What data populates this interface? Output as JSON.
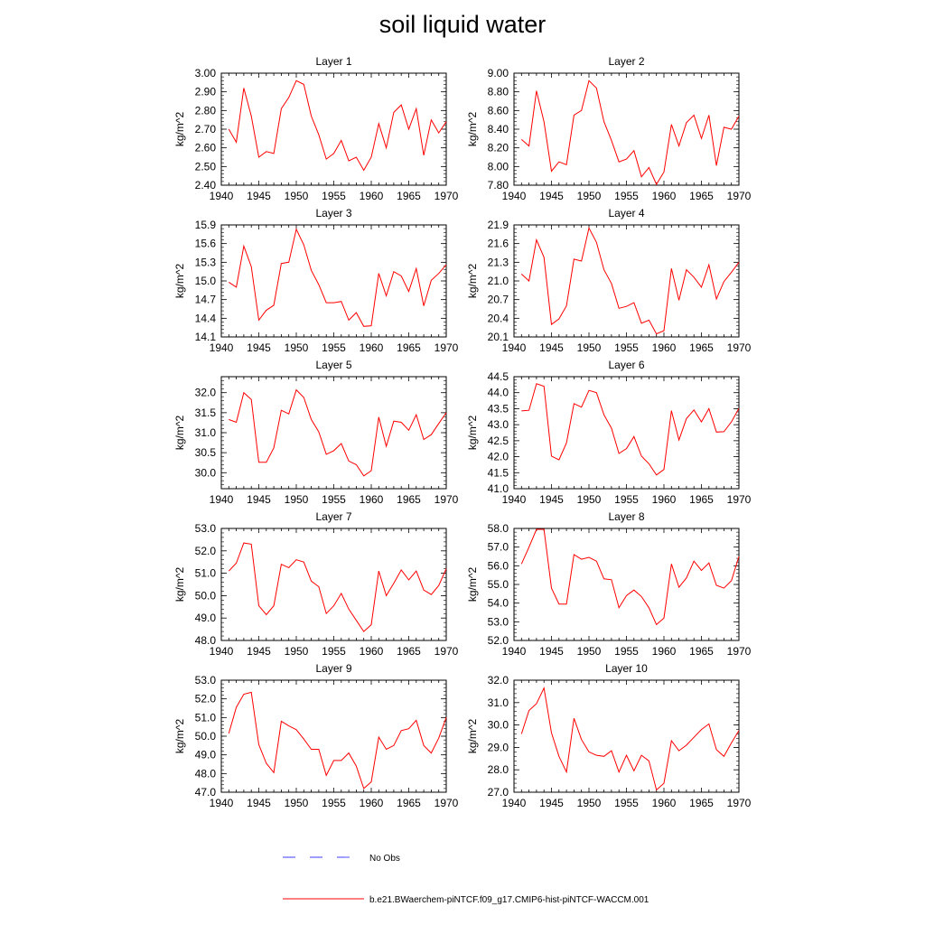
{
  "title": "soil liquid water",
  "colors": {
    "model_line": "#ff0000",
    "obs_line": "#3b3bff",
    "axis": "#000000"
  },
  "legend": {
    "obs_label": "No Obs",
    "model_label": "b.e21.BWaerchem-piNTCF.f09_g17.CMIP6-hist-piNTCF-WACCM.001"
  },
  "chart_data": [
    {
      "type": "line",
      "title": "Layer 1",
      "ylabel": "kg/m^2",
      "xlim": [
        1940,
        1970
      ],
      "ylim": [
        2.4,
        3.0
      ],
      "xticks": [
        1940,
        1945,
        1950,
        1955,
        1960,
        1965,
        1970
      ],
      "yticks": [
        "2.40",
        "2.50",
        "2.60",
        "2.70",
        "2.80",
        "2.90",
        "3.00"
      ],
      "x": [
        1941,
        1942,
        1943,
        1944,
        1945,
        1946,
        1947,
        1948,
        1949,
        1950,
        1951,
        1952,
        1953,
        1954,
        1955,
        1956,
        1957,
        1958,
        1959,
        1960,
        1961,
        1962,
        1963,
        1964,
        1965,
        1966,
        1967,
        1968,
        1969,
        1970
      ],
      "series": [
        {
          "values": [
            2.7,
            2.63,
            2.92,
            2.77,
            2.55,
            2.58,
            2.57,
            2.81,
            2.87,
            2.96,
            2.94,
            2.77,
            2.67,
            2.54,
            2.57,
            2.64,
            2.53,
            2.55,
            2.48,
            2.55,
            2.73,
            2.6,
            2.79,
            2.83,
            2.7,
            2.81,
            2.56,
            2.75,
            2.68,
            2.74
          ]
        }
      ]
    },
    {
      "type": "line",
      "title": "Layer 2",
      "ylabel": "kg/m^2",
      "xlim": [
        1940,
        1970
      ],
      "ylim": [
        7.8,
        9.0
      ],
      "xticks": [
        1940,
        1945,
        1950,
        1955,
        1960,
        1965,
        1970
      ],
      "yticks": [
        "7.80",
        "8.00",
        "8.20",
        "8.40",
        "8.60",
        "8.80",
        "9.00"
      ],
      "x": [
        1941,
        1942,
        1943,
        1944,
        1945,
        1946,
        1947,
        1948,
        1949,
        1950,
        1951,
        1952,
        1953,
        1954,
        1955,
        1956,
        1957,
        1958,
        1959,
        1960,
        1961,
        1962,
        1963,
        1964,
        1965,
        1966,
        1967,
        1968,
        1969,
        1970
      ],
      "series": [
        {
          "values": [
            8.29,
            8.22,
            8.81,
            8.48,
            7.95,
            8.05,
            8.02,
            8.55,
            8.6,
            8.92,
            8.84,
            8.48,
            8.28,
            8.05,
            8.08,
            8.17,
            7.89,
            7.99,
            7.81,
            7.94,
            8.45,
            8.22,
            8.47,
            8.55,
            8.3,
            8.55,
            8.01,
            8.42,
            8.4,
            8.54
          ]
        }
      ]
    },
    {
      "type": "line",
      "title": "Layer 3",
      "ylabel": "kg/m^2",
      "xlim": [
        1940,
        1970
      ],
      "ylim": [
        14.1,
        15.9
      ],
      "xticks": [
        1940,
        1945,
        1950,
        1955,
        1960,
        1965,
        1970
      ],
      "yticks": [
        "14.1",
        "14.4",
        "14.7",
        "15.0",
        "15.3",
        "15.6",
        "15.9"
      ],
      "x": [
        1941,
        1942,
        1943,
        1944,
        1945,
        1946,
        1947,
        1948,
        1949,
        1950,
        1951,
        1952,
        1953,
        1954,
        1955,
        1956,
        1957,
        1958,
        1959,
        1960,
        1961,
        1962,
        1963,
        1964,
        1965,
        1966,
        1967,
        1968,
        1969,
        1970
      ],
      "series": [
        {
          "values": [
            14.98,
            14.9,
            15.56,
            15.23,
            14.37,
            14.53,
            14.61,
            15.28,
            15.3,
            15.83,
            15.58,
            15.17,
            14.94,
            14.65,
            14.65,
            14.67,
            14.37,
            14.49,
            14.27,
            14.28,
            15.12,
            14.76,
            15.15,
            15.08,
            14.83,
            15.2,
            14.6,
            15.01,
            15.12,
            15.26
          ]
        }
      ]
    },
    {
      "type": "line",
      "title": "Layer 4",
      "ylabel": "kg/m^2",
      "xlim": [
        1940,
        1970
      ],
      "ylim": [
        20.1,
        21.9
      ],
      "xticks": [
        1940,
        1945,
        1950,
        1955,
        1960,
        1965,
        1970
      ],
      "yticks": [
        "20.1",
        "20.4",
        "20.7",
        "21.0",
        "21.3",
        "21.6",
        "21.9"
      ],
      "x": [
        1941,
        1942,
        1943,
        1944,
        1945,
        1946,
        1947,
        1948,
        1949,
        1950,
        1951,
        1952,
        1953,
        1954,
        1955,
        1956,
        1957,
        1958,
        1959,
        1960,
        1961,
        1962,
        1963,
        1964,
        1965,
        1966,
        1967,
        1968,
        1969,
        1970
      ],
      "series": [
        {
          "values": [
            21.11,
            21.0,
            21.66,
            21.38,
            20.3,
            20.39,
            20.6,
            21.35,
            21.32,
            21.85,
            21.62,
            21.18,
            20.96,
            20.56,
            20.59,
            20.65,
            20.32,
            20.37,
            20.15,
            20.2,
            21.2,
            20.69,
            21.18,
            21.06,
            20.9,
            21.26,
            20.71,
            20.99,
            21.14,
            21.3
          ]
        }
      ]
    },
    {
      "type": "line",
      "title": "Layer 5",
      "ylabel": "kg/m^2",
      "xlim": [
        1940,
        1970
      ],
      "ylim": [
        29.6,
        32.4
      ],
      "xticks": [
        1940,
        1945,
        1950,
        1955,
        1960,
        1965,
        1970
      ],
      "yticks": [
        "30.0",
        "30.5",
        "31.0",
        "31.5",
        "32.0"
      ],
      "x": [
        1941,
        1942,
        1943,
        1944,
        1945,
        1946,
        1947,
        1948,
        1949,
        1950,
        1951,
        1952,
        1953,
        1954,
        1955,
        1956,
        1957,
        1958,
        1959,
        1960,
        1961,
        1962,
        1963,
        1964,
        1965,
        1966,
        1967,
        1968,
        1969,
        1970
      ],
      "series": [
        {
          "values": [
            31.33,
            31.26,
            32.0,
            31.83,
            30.26,
            30.26,
            30.62,
            31.56,
            31.47,
            32.07,
            31.88,
            31.33,
            31.02,
            30.46,
            30.55,
            30.73,
            30.29,
            30.2,
            29.92,
            30.05,
            31.39,
            30.66,
            31.29,
            31.26,
            31.06,
            31.45,
            30.83,
            30.95,
            31.23,
            31.5
          ]
        }
      ]
    },
    {
      "type": "line",
      "title": "Layer 6",
      "ylabel": "kg/m^2",
      "xlim": [
        1940,
        1970
      ],
      "ylim": [
        41.0,
        44.5
      ],
      "xticks": [
        1940,
        1945,
        1950,
        1955,
        1960,
        1965,
        1970
      ],
      "yticks": [
        "41.0",
        "41.5",
        "42.0",
        "42.5",
        "43.0",
        "43.5",
        "44.0",
        "44.5"
      ],
      "x": [
        1941,
        1942,
        1943,
        1944,
        1945,
        1946,
        1947,
        1948,
        1949,
        1950,
        1951,
        1952,
        1953,
        1954,
        1955,
        1956,
        1957,
        1958,
        1959,
        1960,
        1961,
        1962,
        1963,
        1964,
        1965,
        1966,
        1967,
        1968,
        1969,
        1970
      ],
      "series": [
        {
          "values": [
            43.43,
            43.45,
            44.28,
            44.2,
            42.02,
            41.9,
            42.43,
            43.66,
            43.55,
            44.07,
            44.0,
            43.31,
            42.89,
            42.1,
            42.25,
            42.63,
            42.02,
            41.78,
            41.43,
            41.6,
            43.44,
            42.52,
            43.19,
            43.46,
            43.09,
            43.5,
            42.77,
            42.78,
            43.09,
            43.51
          ]
        }
      ]
    },
    {
      "type": "line",
      "title": "Layer 7",
      "ylabel": "kg/m^2",
      "xlim": [
        1940,
        1970
      ],
      "ylim": [
        48.0,
        53.0
      ],
      "xticks": [
        1940,
        1945,
        1950,
        1955,
        1960,
        1965,
        1970
      ],
      "yticks": [
        "48.0",
        "49.0",
        "50.0",
        "51.0",
        "52.0",
        "53.0"
      ],
      "x": [
        1941,
        1942,
        1943,
        1944,
        1945,
        1946,
        1947,
        1948,
        1949,
        1950,
        1951,
        1952,
        1953,
        1954,
        1955,
        1956,
        1957,
        1958,
        1959,
        1960,
        1961,
        1962,
        1963,
        1964,
        1965,
        1966,
        1967,
        1968,
        1969,
        1970
      ],
      "series": [
        {
          "values": [
            51.1,
            51.45,
            52.35,
            52.3,
            49.55,
            49.15,
            49.55,
            51.4,
            51.25,
            51.6,
            51.5,
            50.65,
            50.4,
            49.2,
            49.55,
            50.1,
            49.4,
            48.9,
            48.4,
            48.7,
            51.1,
            50.0,
            50.55,
            51.15,
            50.7,
            51.1,
            50.25,
            50.05,
            50.45,
            51.2
          ]
        }
      ]
    },
    {
      "type": "line",
      "title": "Layer 8",
      "ylabel": "kg/m^2",
      "xlim": [
        1940,
        1970
      ],
      "ylim": [
        52.0,
        58.0
      ],
      "xticks": [
        1940,
        1945,
        1950,
        1955,
        1960,
        1965,
        1970
      ],
      "yticks": [
        "52.0",
        "53.0",
        "54.0",
        "55.0",
        "56.0",
        "57.0",
        "58.0"
      ],
      "x": [
        1941,
        1942,
        1943,
        1944,
        1945,
        1946,
        1947,
        1948,
        1949,
        1950,
        1951,
        1952,
        1953,
        1954,
        1955,
        1956,
        1957,
        1958,
        1959,
        1960,
        1961,
        1962,
        1963,
        1964,
        1965,
        1966,
        1967,
        1968,
        1969,
        1970
      ],
      "series": [
        {
          "values": [
            56.1,
            57.0,
            57.95,
            57.95,
            54.8,
            53.95,
            53.95,
            56.6,
            56.35,
            56.45,
            56.25,
            55.3,
            55.25,
            53.75,
            54.4,
            54.7,
            54.35,
            53.75,
            52.85,
            53.2,
            56.1,
            54.85,
            55.35,
            56.25,
            55.75,
            56.15,
            54.95,
            54.8,
            55.2,
            56.5
          ]
        }
      ]
    },
    {
      "type": "line",
      "title": "Layer 9",
      "ylabel": "kg/m^2",
      "xlim": [
        1940,
        1970
      ],
      "ylim": [
        47.0,
        53.0
      ],
      "xticks": [
        1940,
        1945,
        1950,
        1955,
        1960,
        1965,
        1970
      ],
      "yticks": [
        "47.0",
        "48.0",
        "49.0",
        "50.0",
        "51.0",
        "52.0",
        "53.0"
      ],
      "x": [
        1941,
        1942,
        1943,
        1944,
        1945,
        1946,
        1947,
        1948,
        1949,
        1950,
        1951,
        1952,
        1953,
        1954,
        1955,
        1956,
        1957,
        1958,
        1959,
        1960,
        1961,
        1962,
        1963,
        1964,
        1965,
        1966,
        1967,
        1968,
        1969,
        1970
      ],
      "series": [
        {
          "values": [
            50.15,
            51.55,
            52.25,
            52.35,
            49.55,
            48.55,
            48.05,
            50.8,
            50.55,
            50.35,
            49.85,
            49.3,
            49.3,
            47.9,
            48.7,
            48.7,
            49.1,
            48.4,
            47.2,
            47.55,
            49.95,
            49.3,
            49.5,
            50.3,
            50.4,
            50.85,
            49.5,
            49.1,
            49.9,
            51.0
          ]
        }
      ]
    },
    {
      "type": "line",
      "title": "Layer 10",
      "ylabel": "kg/m^2",
      "xlim": [
        1940,
        1970
      ],
      "ylim": [
        27.0,
        32.0
      ],
      "xticks": [
        1940,
        1945,
        1950,
        1955,
        1960,
        1965,
        1970
      ],
      "yticks": [
        "27.0",
        "28.0",
        "29.0",
        "30.0",
        "31.0",
        "32.0"
      ],
      "x": [
        1941,
        1942,
        1943,
        1944,
        1945,
        1946,
        1947,
        1948,
        1949,
        1950,
        1951,
        1952,
        1953,
        1954,
        1955,
        1956,
        1957,
        1958,
        1959,
        1960,
        1961,
        1962,
        1963,
        1964,
        1965,
        1966,
        1967,
        1968,
        1969,
        1970
      ],
      "series": [
        {
          "values": [
            29.6,
            30.65,
            30.95,
            31.65,
            29.65,
            28.6,
            27.9,
            30.3,
            29.35,
            28.8,
            28.65,
            28.6,
            28.85,
            27.9,
            28.65,
            27.95,
            28.65,
            28.4,
            27.1,
            27.4,
            29.3,
            28.85,
            29.1,
            29.45,
            29.8,
            30.05,
            28.9,
            28.6,
            29.2,
            29.75
          ]
        }
      ]
    }
  ]
}
